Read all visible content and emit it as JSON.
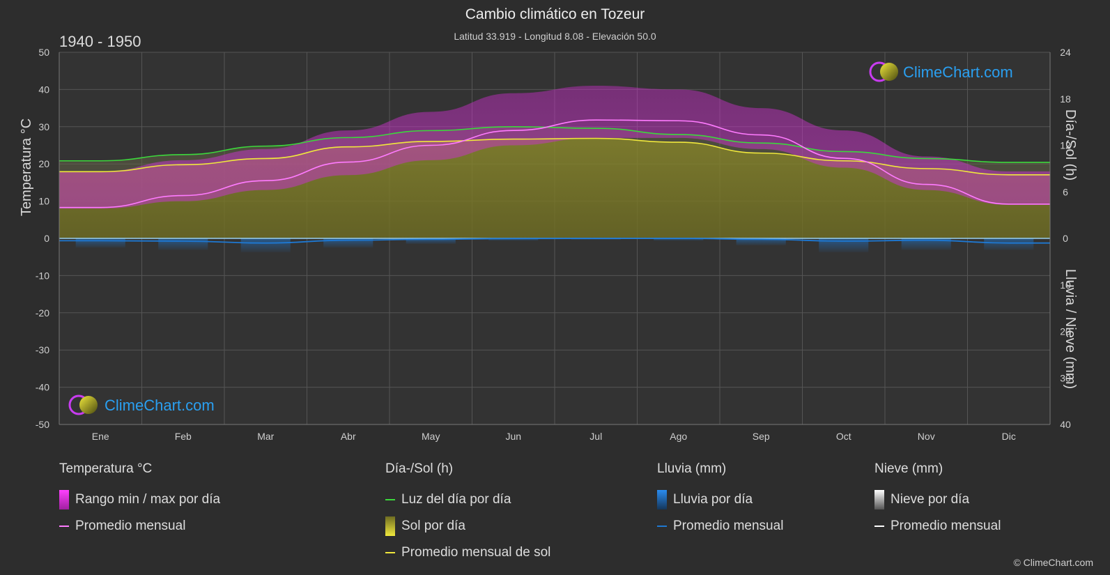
{
  "header": {
    "title": "Cambio climático en Tozeur",
    "subtitle": "Latitud 33.919 - Longitud 8.08 - Elevación 50.0",
    "period": "1940 - 1950"
  },
  "logo": {
    "text": "ClimeChart.com"
  },
  "copyright": "© ClimeChart.com",
  "colors": {
    "background": "#2d2d2d",
    "temp_range": "#d62cd6",
    "temp_avg": "#ff7bff",
    "daylight": "#3cd83c",
    "sunshine_fill": "#8c8a2c",
    "sunshine_avg": "#f0e83c",
    "rain": "#1e78d2",
    "snow": "#ffffff",
    "logo_text": "#2a9ff0"
  },
  "chart_data": {
    "type": "area",
    "categories": [
      "Ene",
      "Feb",
      "Mar",
      "Abr",
      "May",
      "Jun",
      "Jul",
      "Ago",
      "Sep",
      "Oct",
      "Nov",
      "Dic"
    ],
    "axes": {
      "left": {
        "label": "Temperatura °C",
        "ylim": [
          -50,
          50
        ],
        "ticks": [
          50,
          40,
          30,
          20,
          10,
          0,
          -10,
          -20,
          -30,
          -40,
          -50
        ]
      },
      "right_top": {
        "label": "Día-/Sol (h)",
        "ylim": [
          0,
          24
        ],
        "ticks": [
          24,
          18,
          12,
          6,
          0
        ]
      },
      "right_bottom": {
        "label": "Lluvia / Nieve (mm)",
        "ylim": [
          0,
          40
        ],
        "ticks": [
          10,
          20,
          30,
          40
        ]
      }
    },
    "grid": true,
    "series": [
      {
        "name": "Rango min / max por día",
        "unit": "°C",
        "min": [
          8,
          10,
          13,
          17,
          21,
          25,
          27,
          27,
          24,
          19,
          13,
          9
        ],
        "max": [
          18,
          21,
          24,
          29,
          34,
          39,
          41,
          40,
          35,
          29,
          22,
          18
        ]
      },
      {
        "name": "Promedio mensual",
        "unit": "°C",
        "values": [
          8.3,
          11.5,
          15.5,
          20.5,
          25.0,
          29.0,
          31.8,
          31.6,
          27.8,
          21.5,
          14.5,
          9.2
        ]
      },
      {
        "name": "Luz del día por día",
        "unit": "h",
        "values": [
          10.0,
          10.8,
          11.9,
          13.0,
          13.9,
          14.4,
          14.2,
          13.4,
          12.3,
          11.2,
          10.3,
          9.8
        ]
      },
      {
        "name": "Sol por día",
        "unit": "h",
        "values": [
          8.6,
          9.5,
          10.3,
          11.8,
          12.5,
          12.8,
          12.9,
          12.4,
          11.0,
          10.0,
          9.0,
          8.2
        ]
      },
      {
        "name": "Promedio mensual de sol",
        "unit": "h",
        "values": [
          8.6,
          9.5,
          10.3,
          11.8,
          12.5,
          12.8,
          12.9,
          12.4,
          11.0,
          10.0,
          9.0,
          8.2
        ]
      },
      {
        "name": "Lluvia por día",
        "unit": "mm",
        "values": [
          2.0,
          2.5,
          3.0,
          2.0,
          1.2,
          0.5,
          0.3,
          0.5,
          1.5,
          3.0,
          2.5,
          2.5
        ]
      },
      {
        "name": "Promedio mensual",
        "unit": "mm",
        "values": [
          0.5,
          0.6,
          1.0,
          0.4,
          0.2,
          0.05,
          0.0,
          0.0,
          0.2,
          0.6,
          0.4,
          1.0
        ]
      }
    ]
  },
  "legend": {
    "groups": [
      {
        "head": "Temperatura °C",
        "items": [
          {
            "label": "Rango min / max por día",
            "kind": "box",
            "color": "temp_range"
          },
          {
            "label": "Promedio mensual",
            "kind": "line",
            "color": "temp_avg"
          }
        ]
      },
      {
        "head": "Día-/Sol (h)",
        "items": [
          {
            "label": "Luz del día por día",
            "kind": "line",
            "color": "daylight"
          },
          {
            "label": "Sol por día",
            "kind": "box",
            "color": "sunshine_fill"
          },
          {
            "label": "Promedio mensual de sol",
            "kind": "line",
            "color": "sunshine_avg"
          }
        ]
      },
      {
        "head": "Lluvia (mm)",
        "items": [
          {
            "label": "Lluvia por día",
            "kind": "box",
            "color": "rain"
          },
          {
            "label": "Promedio mensual",
            "kind": "line",
            "color": "rain"
          }
        ]
      },
      {
        "head": "Nieve (mm)",
        "items": [
          {
            "label": "Nieve por día",
            "kind": "box",
            "color": "snow"
          },
          {
            "label": "Promedio mensual",
            "kind": "line",
            "color": "snow"
          }
        ]
      }
    ]
  }
}
